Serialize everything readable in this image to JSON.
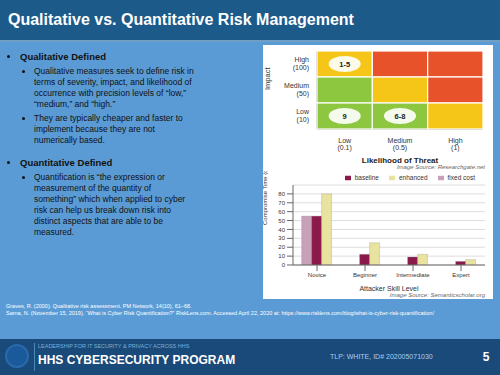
{
  "title": "Qualitative vs. Quantitative Risk Management",
  "annotations": {
    "bullets": [
      {
        "text": "Qualitative Defined",
        "items": [
          "Qualitative measures seek to define risk in\nterms of severity, impact, and likelihood of\noccurrence with precision levels of “low,”\n“medium,” and “high.”",
          "They are typically cheaper and faster to\nimplement because they are not\nnumerically based."
        ]
      },
      {
        "text": "Quantitative Defined",
        "items": [
          "Quantification is “the expression or\nmeasurement of the quantity of\nsomething” which when applied to cyber\nrisk can help us break down risk into\ndistinct aspects that are able to be\nmeasured."
        ]
      }
    ],
    "references": [
      "Graves, R. (2000). Qualitative risk assessment. PM Network, 14(10), 61–68.",
      "Sarna, N. (November 15, 2019).  “What is Cyber Risk Quantification?” RiskLens.com. Accessed April 22, 2020 at:  https://www.risklens.com/blog/what-is-cyber-risk-quantification/"
    ],
    "banner": {
      "subtitle": "LEADERSHIP FOR IT SECURITY & PRIVACY ACROSS HHS",
      "text": "HHS CYBERSECURITY PROGRAM",
      "classification": "TLP: WHITE, ID# 202005071030",
      "page": "5"
    }
  },
  "chart_data": [
    {
      "type": "heatmap",
      "x_categories": [
        "Low\n(0.1)",
        "Medium\n(0.5)",
        "High\n(1)"
      ],
      "y_categories": [
        "High\n(100)",
        "Medium\n(50)",
        "Low\n(10)"
      ],
      "cell_colors": [
        [
          "#f5c518",
          "#e8522a",
          "#e8522a"
        ],
        [
          "#8dc63f",
          "#f5c518",
          "#e8522a"
        ],
        [
          "#8dc63f",
          "#8dc63f",
          "#f5c518"
        ]
      ],
      "cell_labels": [
        [
          "1-5",
          null,
          null
        ],
        [
          null,
          null,
          null
        ],
        [
          "9",
          "6-8",
          null
        ]
      ],
      "xlabel": "Likelihood of Threat",
      "ylabel": "Impact",
      "annotations": [
        "Image Source: Researchgate.net"
      ]
    },
    {
      "type": "bar",
      "xlabel": "Attacker Skill Level",
      "ylabel": "Compromise Time (days)",
      "categories": [
        "Novice",
        "Beginner",
        "Intermediate",
        "Expert"
      ],
      "series": [
        {
          "name": "fixed cost",
          "color": "#c8a0b8",
          "values": [
            55,
            0,
            0,
            0
          ]
        },
        {
          "name": "baseline",
          "color": "#8b1a4a",
          "values": [
            55,
            12,
            9,
            4
          ]
        },
        {
          "name": "enhanced",
          "color": "#e8e4a0",
          "values": [
            80,
            25,
            12,
            6
          ]
        }
      ],
      "ylim": [
        0,
        90
      ],
      "yticks": [
        0,
        10,
        20,
        30,
        40,
        50,
        60,
        70,
        80
      ],
      "grid": "y",
      "legend": "upper right",
      "annotations": [
        "Image Source: Semanticscholar.org"
      ]
    }
  ]
}
